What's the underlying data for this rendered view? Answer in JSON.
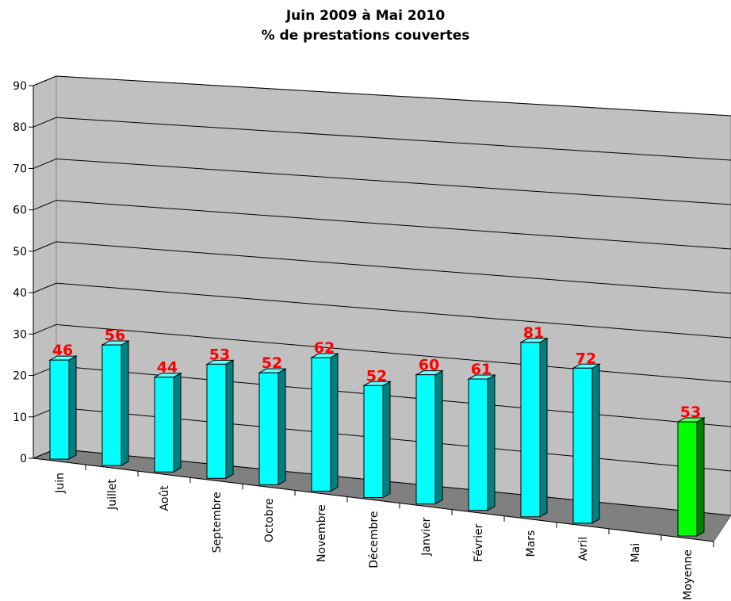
{
  "chart_data": {
    "type": "bar",
    "title_line1": "Juin 2009 à Mai 2010",
    "title_line2": "% de prestations couvertes",
    "xlabel": "",
    "ylabel": "",
    "ylim": [
      0,
      90
    ],
    "yticks": [
      0,
      10,
      20,
      30,
      40,
      50,
      60,
      70,
      80,
      90
    ],
    "grid": true,
    "legend": "none",
    "categories": [
      "Juin",
      "Juillet",
      "Août",
      "Septembre",
      "Octobre",
      "Novembre",
      "Décembre",
      "Janvier",
      "Février",
      "Mars",
      "Avril",
      "Mai",
      "Moyenne"
    ],
    "values": [
      46,
      56,
      44,
      53,
      52,
      62,
      52,
      60,
      61,
      81,
      72,
      null,
      53
    ],
    "data_labels": [
      "46",
      "56",
      "44",
      "53",
      "52",
      "62",
      "52",
      "60",
      "61",
      "81",
      "72",
      "",
      "53"
    ],
    "colors": {
      "bar": "#00ffff",
      "bar_side": "#008080",
      "bar_top": "#66ffff",
      "average_bar": "#00ff00",
      "average_side": "#008000",
      "average_top": "#66ff66",
      "wall": "#c0c0c0",
      "floor": "#808080",
      "label": "#ff0000"
    }
  }
}
